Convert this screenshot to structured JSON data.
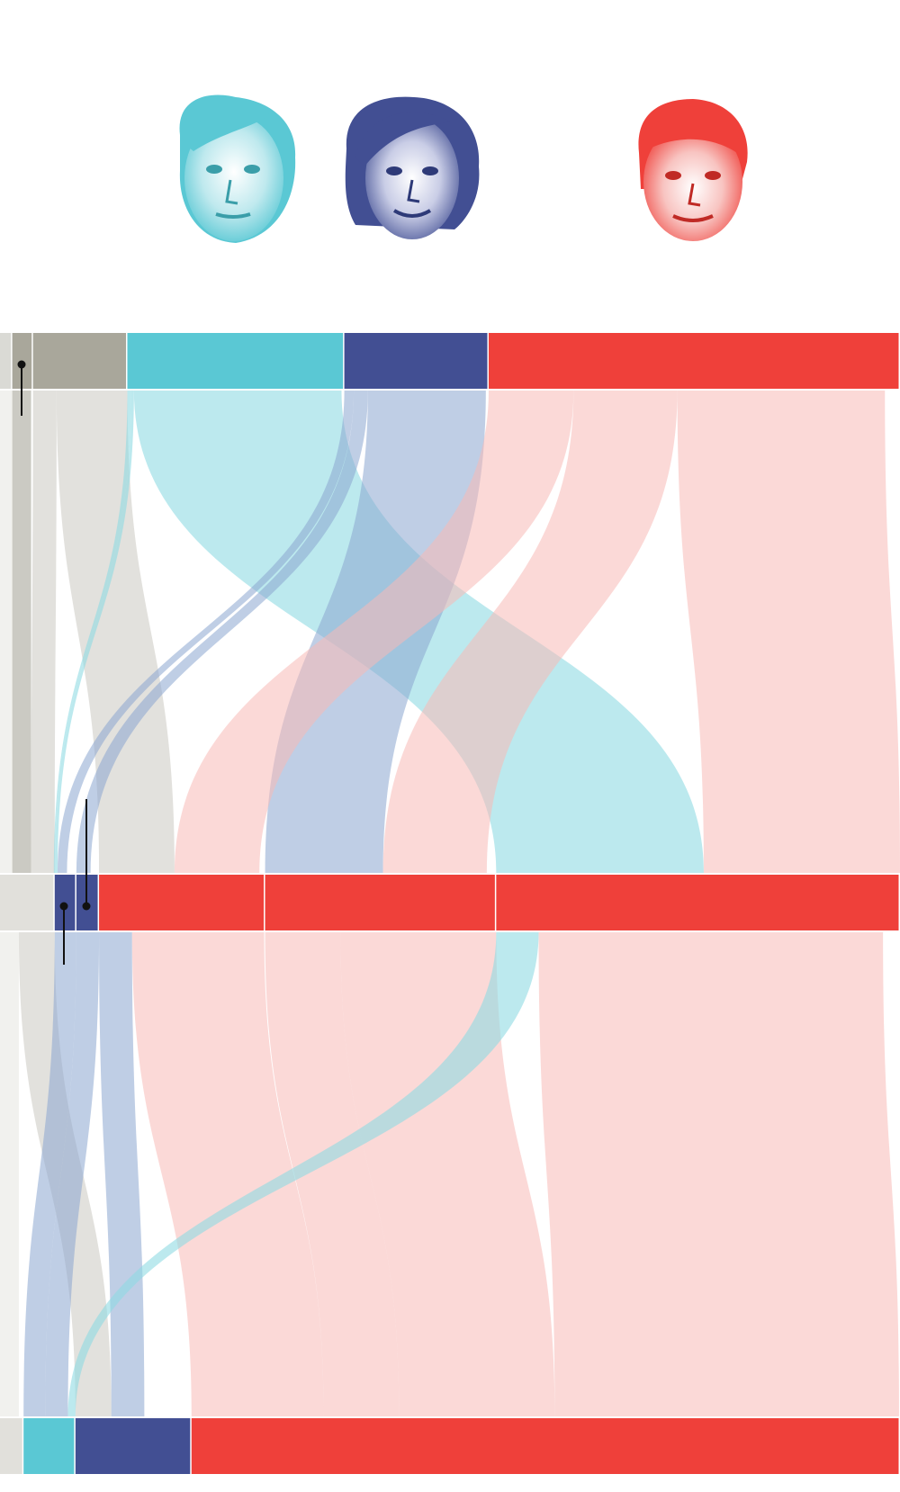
{
  "candidates": [
    {
      "id": "lepen",
      "icon": "marine-le-pen-portrait",
      "color": "#5ac8d4"
    },
    {
      "id": "pecresse",
      "icon": "valerie-pecresse-portrait",
      "color": "#424f93"
    },
    {
      "id": "macron",
      "icon": "emmanuel-macron-portrait",
      "color": "#ef403a"
    }
  ],
  "chart_data": {
    "type": "sankey",
    "title": "",
    "colors": {
      "abstention": "#e1e0db",
      "other": "#a9a79b",
      "lepen": "#5ac8d4",
      "pecresse": "#424f93",
      "macron": "#ef403a",
      "light": "#f3f3f1"
    },
    "stages": [
      {
        "segments": [
          {
            "key": "light",
            "value": 13
          },
          {
            "key": "other",
            "value": 22
          },
          {
            "key": "other",
            "value": 100
          },
          {
            "key": "lepen",
            "value": 230
          },
          {
            "key": "pecresse",
            "value": 153
          },
          {
            "key": "macron",
            "value": 436
          }
        ]
      },
      {
        "segments": [
          {
            "key": "abstention",
            "value": 58
          },
          {
            "key": "pecresse",
            "value": 23
          },
          {
            "key": "pecresse",
            "value": 24
          },
          {
            "key": "macron",
            "value": 176
          },
          {
            "key": "macron",
            "value": 245
          },
          {
            "key": "macron",
            "value": 428
          }
        ]
      },
      {
        "segments": [
          {
            "key": "abstention",
            "value": 25
          },
          {
            "key": "lepen",
            "value": 55
          },
          {
            "key": "pecresse",
            "value": 123
          },
          {
            "key": "macron",
            "value": 751
          }
        ]
      }
    ],
    "flows": [
      {
        "stage": 0,
        "from": 0,
        "to": 0,
        "value": 13,
        "key": "light"
      },
      {
        "stage": 0,
        "from": 1,
        "to": 0,
        "value": 20,
        "key": "other"
      },
      {
        "stage": 0,
        "from": 2,
        "to": 0,
        "value": 25,
        "key": "abstention"
      },
      {
        "stage": 0,
        "from": 2,
        "to": 3,
        "value": 80,
        "key": "abstention"
      },
      {
        "stage": 0,
        "from": 3,
        "to": 0,
        "value": 4,
        "key": "lepen"
      },
      {
        "stage": 0,
        "from": 3,
        "to": 1,
        "value": 3,
        "key": "lepen"
      },
      {
        "stage": 0,
        "from": 3,
        "to": 5,
        "value": 220,
        "key": "lepen"
      },
      {
        "stage": 0,
        "from": 4,
        "to": 1,
        "value": 10,
        "key": "pecresse"
      },
      {
        "stage": 0,
        "from": 4,
        "to": 2,
        "value": 15,
        "key": "pecresse"
      },
      {
        "stage": 0,
        "from": 4,
        "to": 4,
        "value": 125,
        "key": "pecresse"
      },
      {
        "stage": 0,
        "from": 5,
        "to": 3,
        "value": 90,
        "key": "macron"
      },
      {
        "stage": 0,
        "from": 5,
        "to": 4,
        "value": 110,
        "key": "macron"
      },
      {
        "stage": 0,
        "from": 5,
        "to": 5,
        "value": 220,
        "key": "macron"
      },
      {
        "stage": 1,
        "from": 0,
        "to": 0,
        "value": 20,
        "key": "light"
      },
      {
        "stage": 1,
        "from": 0,
        "to": 2,
        "value": 38,
        "key": "abstention"
      },
      {
        "stage": 1,
        "from": 1,
        "to": 1,
        "value": 23,
        "key": "pecresse"
      },
      {
        "stage": 1,
        "from": 2,
        "to": 1,
        "value": 24,
        "key": "pecresse"
      },
      {
        "stage": 1,
        "from": 3,
        "to": 2,
        "value": 35,
        "key": "pecresse"
      },
      {
        "stage": 1,
        "from": 3,
        "to": 3,
        "value": 140,
        "key": "macron"
      },
      {
        "stage": 1,
        "from": 4,
        "to": 3,
        "value": 80,
        "key": "macron"
      },
      {
        "stage": 1,
        "from": 4,
        "to": 3,
        "value": 165,
        "key": "macron"
      },
      {
        "stage": 1,
        "from": 5,
        "to": 1,
        "value": 45,
        "key": "lepen"
      },
      {
        "stage": 1,
        "from": 5,
        "to": 3,
        "value": 365,
        "key": "macron"
      }
    ]
  }
}
